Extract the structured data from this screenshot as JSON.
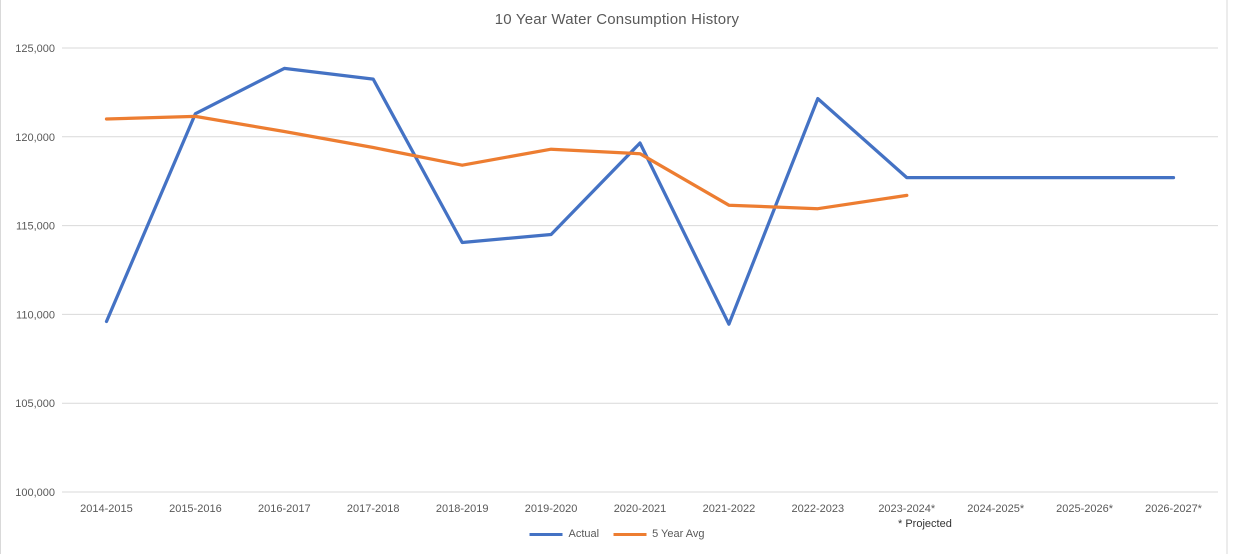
{
  "chart_data": {
    "type": "line",
    "title": "10 Year Water Consumption History",
    "footnote": "* Projected",
    "categories": [
      "2014-2015",
      "2015-2016",
      "2016-2017",
      "2017-2018",
      "2018-2019",
      "2019-2020",
      "2020-2021",
      "2021-2022",
      "2022-2023",
      "2023-2024*",
      "2024-2025*",
      "2025-2026*",
      "2026-2027*"
    ],
    "series": [
      {
        "name": "Actual",
        "color": "#4472C4",
        "values": [
          109600,
          121300,
          123850,
          123250,
          114050,
          114500,
          119650,
          109450,
          122150,
          117700,
          117700,
          117700,
          117700
        ]
      },
      {
        "name": "5 Year Avg",
        "color": "#ED7D31",
        "values": [
          121000,
          121150,
          120300,
          119400,
          118400,
          119300,
          119050,
          116150,
          115950,
          116700,
          null,
          null,
          null
        ]
      }
    ],
    "ylim": [
      100000,
      125000
    ],
    "ytick_step": 5000,
    "ytick_labels": [
      "100,000",
      "105,000",
      "110,000",
      "115,000",
      "120,000",
      "125,000"
    ],
    "grid": true,
    "legend_position": "bottom",
    "gridline_color": "#d9d9d9",
    "text_color": "#595959"
  }
}
